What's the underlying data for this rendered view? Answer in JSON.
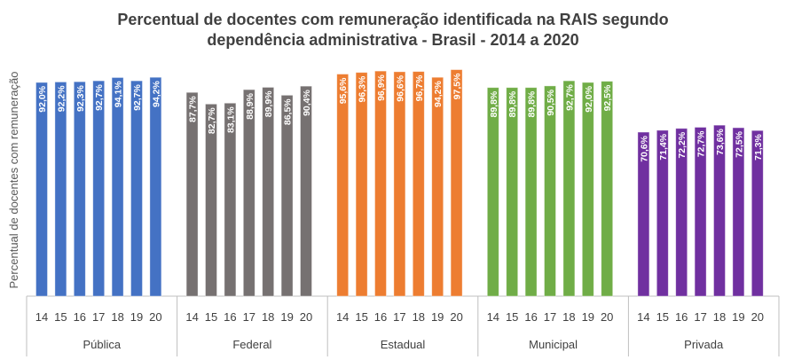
{
  "chart_data": {
    "type": "bar",
    "title_lines": [
      "Percentual de docentes com remuneração identificada na RAIS segundo",
      "dependência administrativa - Brasil - 2014 a 2020"
    ],
    "ylabel": "Percentual de docentes com remuneração",
    "xlabel": "",
    "ylim": [
      0,
      100
    ],
    "grid": false,
    "legend": "none",
    "categories": [
      "14",
      "15",
      "16",
      "17",
      "18",
      "19",
      "20"
    ],
    "groups": [
      {
        "name": "Pública",
        "color": "#4472C4",
        "values": [
          92.0,
          92.2,
          92.3,
          92.7,
          94.1,
          92.7,
          94.2
        ],
        "labels": [
          "92,0%",
          "92,2%",
          "92,3%",
          "92,7%",
          "94,1%",
          "92,7%",
          "94,2%"
        ]
      },
      {
        "name": "Federal",
        "color": "#767171",
        "values": [
          87.7,
          82.7,
          83.1,
          88.9,
          89.9,
          86.5,
          90.4
        ],
        "labels": [
          "87,7%",
          "82,7%",
          "83,1%",
          "88,9%",
          "89,9%",
          "86,5%",
          "90,4%"
        ]
      },
      {
        "name": "Estadual",
        "color": "#ED7D31",
        "values": [
          95.6,
          96.3,
          96.9,
          96.6,
          96.7,
          94.2,
          97.5
        ],
        "labels": [
          "95,6%",
          "96,3%",
          "96,9%",
          "96,6%",
          "96,7%",
          "94,2%",
          "97,5%"
        ]
      },
      {
        "name": "Municipal",
        "color": "#70AD47",
        "values": [
          89.8,
          89.8,
          89.8,
          90.5,
          92.7,
          92.0,
          92.5
        ],
        "labels": [
          "89,8%",
          "89,8%",
          "89,8%",
          "90,5%",
          "92,7%",
          "92,0%",
          "92,5%"
        ]
      },
      {
        "name": "Privada",
        "color": "#7030A0",
        "values": [
          70.6,
          71.4,
          72.2,
          72.7,
          73.6,
          72.5,
          71.3
        ],
        "labels": [
          "70,6%",
          "71,4%",
          "72,2%",
          "72,7%",
          "73,6%",
          "72,5%",
          "71,3%"
        ]
      }
    ]
  }
}
